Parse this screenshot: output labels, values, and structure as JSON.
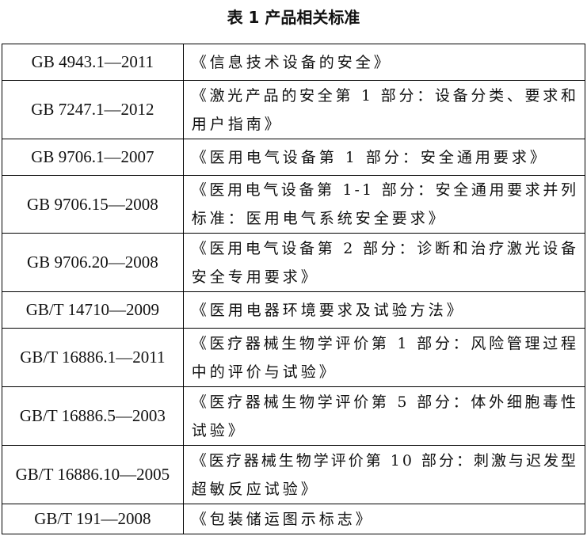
{
  "title": "表 1  产品相关标准",
  "rows": [
    {
      "code": "GB 4943.1—2011",
      "name_lines": [
        "《信息技术设备的安全》"
      ]
    },
    {
      "code": "GB 7247.1—2012",
      "name_lines": [
        "《激光产品的安全第 1 部分：设备分类、要求和",
        "用户指南》"
      ]
    },
    {
      "code": "GB 9706.1—2007",
      "name_lines": [
        "《医用电气设备第 1 部分：安全通用要求》"
      ]
    },
    {
      "code": "GB 9706.15—2008",
      "name_lines": [
        "《医用电气设备第 1-1 部分：安全通用要求并列",
        "标准：医用电气系统安全要求》"
      ]
    },
    {
      "code": "GB 9706.20—2008",
      "name_lines": [
        "《医用电气设备第 2 部分：诊断和治疗激光设备",
        "安全专用要求》"
      ]
    },
    {
      "code": "GB/T 14710—2009",
      "name_lines": [
        "《医用电器环境要求及试验方法》"
      ]
    },
    {
      "code": "GB/T 16886.1—2011",
      "name_lines": [
        "《医疗器械生物学评价第 1 部分：风险管理过程",
        "中的评价与试验》"
      ]
    },
    {
      "code": "GB/T 16886.5—2003",
      "name_lines": [
        "《医疗器械生物学评价第 5 部分：体外细胞毒性",
        "试验》"
      ]
    },
    {
      "code": "GB/T 16886.10—2005",
      "name_lines": [
        "《医疗器械生物学评价第 10 部分：刺激与迟发型",
        "超敏反应试验》"
      ]
    },
    {
      "code": "GB/T 191—2008",
      "name_lines": [
        "《包装储运图示标志》"
      ]
    }
  ]
}
